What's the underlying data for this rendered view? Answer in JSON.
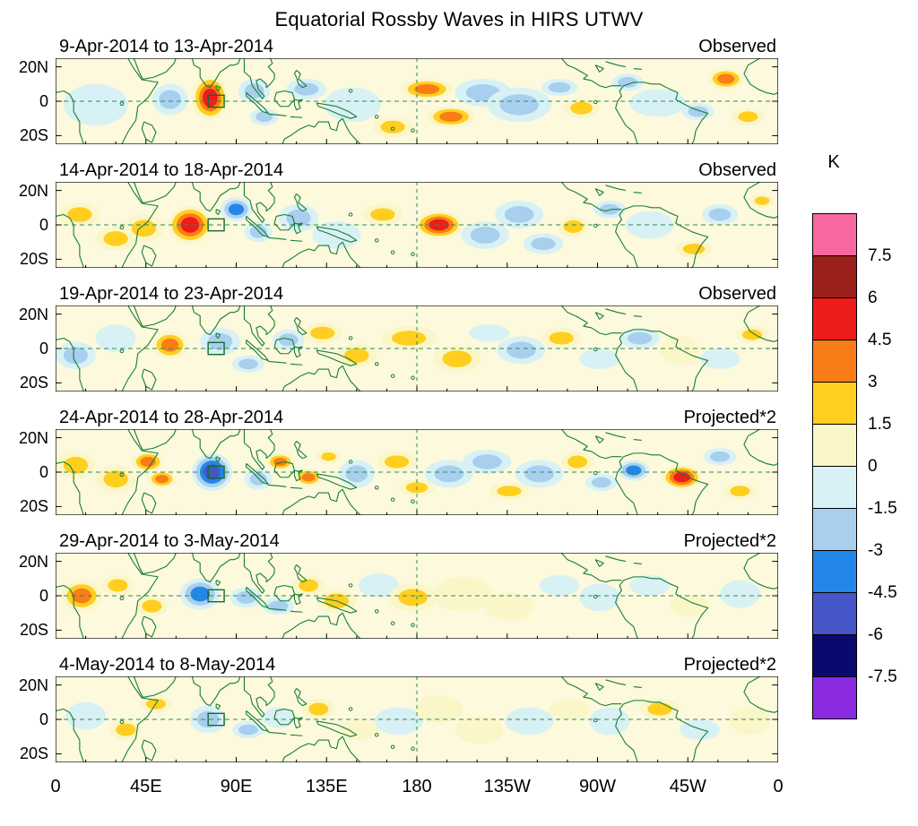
{
  "title": "Equatorial Rossby Waves in HIRS UTWV",
  "colorbar": {
    "label": "K",
    "tick_labels": [
      "7.5",
      "6",
      "4.5",
      "3",
      "1.5",
      "0",
      "-1.5",
      "-3",
      "-4.5",
      "-6",
      "-7.5"
    ],
    "colors": [
      "#F768A1",
      "#9B1F1A",
      "#EE1B1B",
      "#F87D17",
      "#FFCE1F",
      "#FBF6C8",
      "#D8F1F4",
      "#A9CFEE",
      "#2287E8",
      "#4456C8",
      "#0A0A6E",
      "#8A2BE2"
    ]
  },
  "chart_data": {
    "type": "heatmap",
    "subtype": "filled-contour-map-series",
    "units": "K",
    "lat_range": [
      -25,
      25
    ],
    "lon_range": [
      0,
      360
    ],
    "grid": {
      "equator_dashed": true,
      "dateline_dashed": true
    },
    "y_tick_labels": [
      "20N",
      "0",
      "20S"
    ],
    "x_tick_labels": [
      "0",
      "45E",
      "90E",
      "135E",
      "180",
      "135W",
      "90W",
      "45W",
      "0"
    ],
    "box_region": {
      "lon_min": 76,
      "lon_max": 84,
      "lat_min": -3.5,
      "lat_max": 3.5
    },
    "anomaly_fields": [
      "lon_E",
      "lat",
      "rx_lon_deg",
      "ry_lat_deg",
      "peak_K"
    ],
    "panels": [
      {
        "date_range": "9-Apr-2014 to 13-Apr-2014",
        "source": "Observed",
        "anomalies": [
          [
            20,
            -2,
            16,
            12,
            -1.2
          ],
          [
            57,
            1,
            9,
            9,
            -2.6
          ],
          [
            77,
            2,
            9,
            13,
            4.7
          ],
          [
            99,
            6,
            8,
            7,
            -2.6
          ],
          [
            104,
            -9,
            7,
            5,
            -2.0
          ],
          [
            125,
            7,
            10,
            6,
            -1.8
          ],
          [
            148,
            -2,
            14,
            10,
            -1.2
          ],
          [
            168,
            -15,
            10,
            6,
            1.8
          ],
          [
            185,
            7,
            13,
            6,
            4.0
          ],
          [
            197,
            -9,
            12,
            6,
            3.9
          ],
          [
            213,
            5,
            14,
            8,
            -1.5
          ],
          [
            231,
            -2,
            16,
            10,
            -2.0
          ],
          [
            251,
            8,
            9,
            5,
            -1.6
          ],
          [
            262,
            -4,
            9,
            6,
            1.8
          ],
          [
            285,
            11,
            8,
            5,
            -1.8
          ],
          [
            300,
            -1,
            14,
            8,
            -1.3
          ],
          [
            320,
            -6,
            8,
            5,
            -1.6
          ],
          [
            334,
            13,
            9,
            6,
            3.2
          ],
          [
            345,
            -9,
            8,
            5,
            1.8
          ]
        ]
      },
      {
        "date_range": "14-Apr-2014 to 18-Apr-2014",
        "source": "Observed",
        "anomalies": [
          [
            12,
            6,
            10,
            7,
            1.9
          ],
          [
            30,
            -8,
            10,
            7,
            1.7
          ],
          [
            44,
            -2,
            10,
            8,
            2.0
          ],
          [
            67,
            0,
            11,
            11,
            4.8
          ],
          [
            90,
            9,
            8,
            7,
            -3.6
          ],
          [
            101,
            -4,
            7,
            6,
            -2.2
          ],
          [
            121,
            4,
            10,
            8,
            -1.6
          ],
          [
            140,
            -6,
            12,
            8,
            -1.3
          ],
          [
            163,
            6,
            10,
            6,
            1.7
          ],
          [
            191,
            0,
            12,
            8,
            4.8
          ],
          [
            214,
            -6,
            12,
            8,
            -1.6
          ],
          [
            231,
            6,
            12,
            8,
            -2.1
          ],
          [
            243,
            -11,
            10,
            6,
            -1.6
          ],
          [
            258,
            -1,
            8,
            6,
            1.9
          ],
          [
            276,
            9,
            8,
            5,
            -1.8
          ],
          [
            296,
            0,
            12,
            8,
            -1.4
          ],
          [
            318,
            -14,
            9,
            5,
            1.7
          ],
          [
            331,
            6,
            9,
            6,
            -2.2
          ],
          [
            352,
            14,
            6,
            4,
            2.6
          ]
        ]
      },
      {
        "date_range": "19-Apr-2014 to 23-Apr-2014",
        "source": "Observed",
        "anomalies": [
          [
            10,
            -4,
            10,
            8,
            -1.5
          ],
          [
            30,
            6,
            10,
            8,
            -1.2
          ],
          [
            57,
            2,
            9,
            8,
            3.8
          ],
          [
            82,
            4,
            10,
            8,
            -2.3
          ],
          [
            96,
            -9,
            8,
            5,
            -1.8
          ],
          [
            116,
            5,
            8,
            6,
            -1.5
          ],
          [
            133,
            9,
            10,
            6,
            1.9
          ],
          [
            150,
            -4,
            10,
            7,
            1.6
          ],
          [
            176,
            6,
            14,
            7,
            2.0
          ],
          [
            200,
            -6,
            12,
            8,
            1.9
          ],
          [
            216,
            9,
            10,
            5,
            -1.3
          ],
          [
            232,
            -1,
            12,
            8,
            -1.5
          ],
          [
            252,
            6,
            10,
            6,
            1.6
          ],
          [
            271,
            -6,
            10,
            6,
            -1.4
          ],
          [
            291,
            6,
            10,
            6,
            -1.5
          ],
          [
            311,
            -1,
            10,
            8,
            1.4
          ],
          [
            331,
            -6,
            10,
            6,
            -1.4
          ],
          [
            347,
            8,
            8,
            5,
            1.6
          ]
        ]
      },
      {
        "date_range": "24-Apr-2014 to 28-Apr-2014",
        "source": "Projected*2",
        "anomalies": [
          [
            10,
            4,
            10,
            8,
            2.3
          ],
          [
            30,
            -4,
            10,
            8,
            1.9
          ],
          [
            46,
            6,
            8,
            6,
            4.3
          ],
          [
            53,
            -4,
            7,
            5,
            3.4
          ],
          [
            78,
            0,
            10,
            11,
            -4.8
          ],
          [
            101,
            -4,
            7,
            6,
            -2.4
          ],
          [
            112,
            6,
            7,
            5,
            3.6
          ],
          [
            126,
            -3,
            7,
            5,
            3.4
          ],
          [
            136,
            9,
            6,
            4,
            2.4
          ],
          [
            150,
            -1,
            9,
            8,
            -2.9
          ],
          [
            170,
            6,
            10,
            6,
            2.9
          ],
          [
            180,
            -9,
            9,
            5,
            2.2
          ],
          [
            196,
            -1,
            12,
            8,
            -2.2
          ],
          [
            215,
            6,
            12,
            7,
            -1.8
          ],
          [
            226,
            -11,
            10,
            5,
            1.9
          ],
          [
            241,
            -1,
            12,
            8,
            -2.1
          ],
          [
            260,
            6,
            8,
            6,
            1.9
          ],
          [
            272,
            -6,
            8,
            5,
            -1.6
          ],
          [
            288,
            1,
            8,
            6,
            -3.4
          ],
          [
            312,
            -3,
            10,
            7,
            4.7
          ],
          [
            331,
            9,
            8,
            5,
            -1.8
          ],
          [
            341,
            -11,
            8,
            5,
            1.9
          ]
        ]
      },
      {
        "date_range": "29-Apr-2014 to 3-May-2014",
        "source": "Projected*2",
        "anomalies": [
          [
            13,
            0,
            10,
            9,
            3.1
          ],
          [
            31,
            6,
            8,
            6,
            1.8
          ],
          [
            48,
            -6,
            8,
            6,
            1.7
          ],
          [
            72,
            1,
            10,
            9,
            -4.4
          ],
          [
            95,
            -1,
            8,
            6,
            -2.3
          ],
          [
            111,
            -6,
            8,
            5,
            -1.7
          ],
          [
            126,
            6,
            8,
            6,
            1.6
          ],
          [
            140,
            -3,
            10,
            7,
            1.9
          ],
          [
            161,
            6,
            10,
            7,
            -1.4
          ],
          [
            178,
            -1,
            12,
            8,
            1.5
          ],
          [
            203,
            1,
            15,
            10,
            1.4
          ],
          [
            226,
            -6,
            12,
            8,
            1.4
          ],
          [
            251,
            6,
            10,
            6,
            -1.3
          ],
          [
            271,
            -1,
            10,
            8,
            -1.3
          ],
          [
            296,
            6,
            10,
            6,
            -1.4
          ],
          [
            316,
            -6,
            10,
            6,
            1.4
          ],
          [
            341,
            1,
            10,
            8,
            -1.2
          ]
        ]
      },
      {
        "date_range": "4-May-2014 to 8-May-2014",
        "source": "Projected*2",
        "anomalies": [
          [
            15,
            2,
            10,
            8,
            -1.4
          ],
          [
            35,
            -6,
            8,
            6,
            1.5
          ],
          [
            50,
            9,
            8,
            5,
            1.7
          ],
          [
            76,
            0,
            9,
            8,
            -2.7
          ],
          [
            96,
            -6,
            8,
            5,
            -1.5
          ],
          [
            111,
            1,
            8,
            6,
            -1.3
          ],
          [
            131,
            6,
            8,
            6,
            1.5
          ],
          [
            151,
            -6,
            10,
            6,
            1.4
          ],
          [
            171,
            -1,
            12,
            8,
            -1.2
          ],
          [
            191,
            6,
            12,
            8,
            1.3
          ],
          [
            211,
            -6,
            12,
            8,
            1.3
          ],
          [
            236,
            -1,
            12,
            8,
            -1.2
          ],
          [
            256,
            6,
            10,
            6,
            1.4
          ],
          [
            276,
            -1,
            10,
            8,
            -1.3
          ],
          [
            301,
            6,
            10,
            6,
            1.6
          ],
          [
            321,
            -6,
            10,
            6,
            -1.3
          ],
          [
            346,
            -1,
            10,
            8,
            1.3
          ]
        ]
      }
    ]
  }
}
